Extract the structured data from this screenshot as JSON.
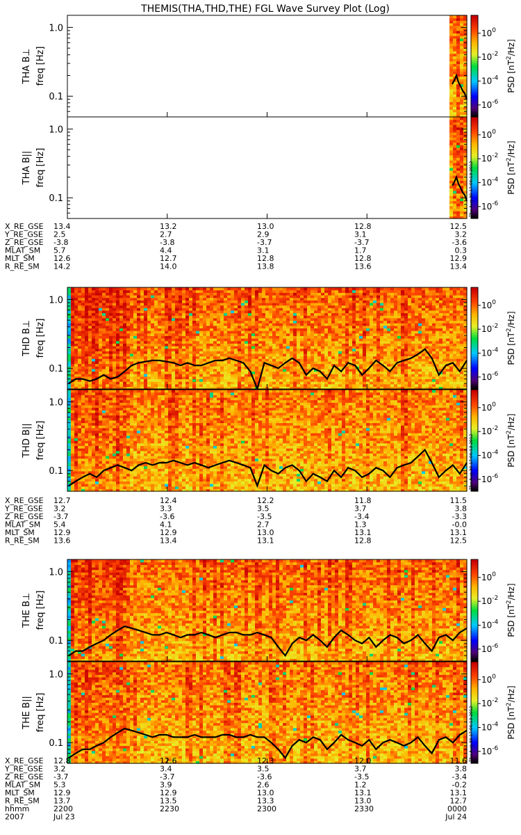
{
  "chart_data": {
    "type": "heatmap",
    "title": "THEMIS(THA,THD,THE) FGL Wave Survey Plot (Log)",
    "timestamp": "Thu Aug 30 17:06:13 2012",
    "colorbar": {
      "label_prefix": "PSD [nT",
      "label_exp": "2",
      "label_suffix": "/Hz]",
      "ticks": [
        {
          "base": "10",
          "exp": "0"
        },
        {
          "base": "10",
          "exp": "-2"
        },
        {
          "base": "10",
          "exp": "-4"
        },
        {
          "base": "10",
          "exp": "-6"
        }
      ],
      "tick_values": [
        0,
        -2,
        -4,
        -6
      ],
      "range_log": [
        -7,
        1.5
      ]
    },
    "yaxis": {
      "label": "freq [Hz]",
      "range": [
        0.05,
        1.5
      ],
      "scale": "log",
      "ticks": [
        {
          "value": 1.0,
          "label": "1.0"
        },
        {
          "value": 0.1,
          "label": "0.1"
        }
      ]
    },
    "panels": [
      {
        "probe": "THA",
        "component": "B⊥",
        "data_start_frac": 0.96,
        "intensity": 0.9,
        "seed": 11,
        "line": [
          0.15,
          0.17,
          0.2,
          0.16,
          0.14,
          0.12,
          0.11,
          0.09
        ]
      },
      {
        "probe": "THA",
        "component": "B||",
        "data_start_frac": 0.96,
        "intensity": 0.9,
        "seed": 13,
        "line": [
          0.15,
          0.17,
          0.2,
          0.16,
          0.14,
          0.12,
          0.11,
          0.09
        ],
        "show_timestamp": true
      },
      {
        "probe": "THD",
        "component": "B⊥",
        "data_start_frac": 0.0,
        "intensity": 1.0,
        "seed": 21,
        "line": [
          0.06,
          0.07,
          0.07,
          0.065,
          0.07,
          0.08,
          0.07,
          0.075,
          0.09,
          0.11,
          0.12,
          0.125,
          0.13,
          0.13,
          0.125,
          0.12,
          0.11,
          0.12,
          0.11,
          0.11,
          0.12,
          0.13,
          0.13,
          0.14,
          0.13,
          0.12,
          0.09,
          0.05,
          0.12,
          0.11,
          0.1,
          0.12,
          0.14,
          0.12,
          0.08,
          0.1,
          0.09,
          0.07,
          0.11,
          0.09,
          0.12,
          0.11,
          0.08,
          0.1,
          0.13,
          0.11,
          0.09,
          0.12,
          0.13,
          0.14,
          0.16,
          0.19,
          0.14,
          0.08,
          0.11,
          0.12,
          0.09,
          0.13
        ]
      },
      {
        "probe": "THD",
        "component": "B||",
        "data_start_frac": 0.0,
        "intensity": 0.85,
        "seed": 23,
        "line": [
          0.06,
          0.07,
          0.08,
          0.09,
          0.08,
          0.1,
          0.11,
          0.12,
          0.11,
          0.1,
          0.12,
          0.13,
          0.12,
          0.13,
          0.13,
          0.14,
          0.13,
          0.12,
          0.13,
          0.12,
          0.11,
          0.12,
          0.13,
          0.14,
          0.13,
          0.12,
          0.11,
          0.06,
          0.12,
          0.1,
          0.09,
          0.11,
          0.12,
          0.1,
          0.07,
          0.09,
          0.08,
          0.07,
          0.1,
          0.08,
          0.11,
          0.1,
          0.08,
          0.09,
          0.11,
          0.1,
          0.08,
          0.11,
          0.12,
          0.13,
          0.16,
          0.2,
          0.13,
          0.08,
          0.1,
          0.12,
          0.09,
          0.13
        ],
        "show_timestamp": true
      },
      {
        "probe": "THE",
        "component": "B⊥",
        "data_start_frac": 0.0,
        "intensity": 0.95,
        "seed": 31,
        "line": [
          0.06,
          0.07,
          0.07,
          0.08,
          0.09,
          0.1,
          0.12,
          0.14,
          0.16,
          0.15,
          0.14,
          0.13,
          0.12,
          0.12,
          0.13,
          0.12,
          0.11,
          0.12,
          0.12,
          0.13,
          0.12,
          0.11,
          0.12,
          0.13,
          0.13,
          0.12,
          0.12,
          0.13,
          0.12,
          0.11,
          0.08,
          0.06,
          0.09,
          0.11,
          0.1,
          0.12,
          0.1,
          0.08,
          0.11,
          0.14,
          0.12,
          0.1,
          0.09,
          0.11,
          0.08,
          0.1,
          0.12,
          0.11,
          0.09,
          0.1,
          0.12,
          0.09,
          0.07,
          0.11,
          0.12,
          0.1,
          0.13,
          0.15
        ]
      },
      {
        "probe": "THE",
        "component": "B||",
        "data_start_frac": 0.0,
        "intensity": 0.85,
        "seed": 37,
        "line": [
          0.06,
          0.07,
          0.08,
          0.08,
          0.09,
          0.1,
          0.12,
          0.14,
          0.16,
          0.15,
          0.14,
          0.13,
          0.12,
          0.13,
          0.13,
          0.12,
          0.12,
          0.12,
          0.13,
          0.12,
          0.12,
          0.12,
          0.13,
          0.13,
          0.12,
          0.12,
          0.13,
          0.12,
          0.12,
          0.1,
          0.08,
          0.06,
          0.09,
          0.11,
          0.1,
          0.12,
          0.11,
          0.08,
          0.1,
          0.13,
          0.11,
          0.1,
          0.09,
          0.11,
          0.08,
          0.1,
          0.11,
          0.1,
          0.09,
          0.1,
          0.12,
          0.09,
          0.07,
          0.11,
          0.12,
          0.1,
          0.13,
          0.15
        ],
        "show_timestamp": true
      }
    ],
    "ephemeris": [
      {
        "probe": "THA",
        "rows": [
          {
            "name": "X_RE_GSE",
            "values": [
              "13.4",
              "13.2",
              "13.0",
              "12.8",
              "12.5"
            ]
          },
          {
            "name": "Y_RE_GSE",
            "values": [
              "2.5",
              "2.7",
              "2.9",
              "3.1",
              "3.2"
            ]
          },
          {
            "name": "Z_RE_GSE",
            "values": [
              "-3.8",
              "-3.8",
              "-3.7",
              "-3.7",
              "-3.6"
            ]
          },
          {
            "name": "MLAT_SM",
            "values": [
              "5.7",
              "4.4",
              "3.1",
              "1.7",
              "0.3"
            ]
          },
          {
            "name": "MLT_SM",
            "values": [
              "12.6",
              "12.7",
              "12.8",
              "12.8",
              "12.9"
            ]
          },
          {
            "name": "R_RE_SM",
            "values": [
              "14.2",
              "14.0",
              "13.8",
              "13.6",
              "13.4"
            ]
          }
        ]
      },
      {
        "probe": "THD",
        "rows": [
          {
            "name": "X_RE_GSE",
            "values": [
              "12.7",
              "12.4",
              "12.2",
              "11.8",
              "11.5"
            ]
          },
          {
            "name": "Y_RE_GSE",
            "values": [
              "3.2",
              "3.3",
              "3.5",
              "3.7",
              "3.8"
            ]
          },
          {
            "name": "Z_RE_GSE",
            "values": [
              "-3.7",
              "-3.6",
              "-3.5",
              "-3.4",
              "-3.3"
            ]
          },
          {
            "name": "MLAT_SM",
            "values": [
              "5.4",
              "4.1",
              "2.7",
              "1.3",
              "-0.0"
            ]
          },
          {
            "name": "MLT_SM",
            "values": [
              "12.9",
              "12.9",
              "13.0",
              "13.1",
              "13.1"
            ]
          },
          {
            "name": "R_RE_SM",
            "values": [
              "13.6",
              "13.4",
              "13.1",
              "12.8",
              "12.5"
            ]
          }
        ]
      },
      {
        "probe": "THE",
        "rows": [
          {
            "name": "X_RE_GSE",
            "values": [
              "12.8",
              "12.6",
              "12.3",
              "12.0",
              "11.6"
            ]
          },
          {
            "name": "Y_RE_GSE",
            "values": [
              "3.2",
              "3.4",
              "3.5",
              "3.7",
              "3.8"
            ]
          },
          {
            "name": "Z_RE_GSE",
            "values": [
              "-3.7",
              "-3.7",
              "-3.6",
              "-3.5",
              "-3.4"
            ]
          },
          {
            "name": "MLAT_SM",
            "values": [
              "5.3",
              "3.9",
              "2.6",
              "1.2",
              "-0.2"
            ]
          },
          {
            "name": "MLT_SM",
            "values": [
              "12.9",
              "12.9",
              "13.0",
              "13.1",
              "13.1"
            ]
          },
          {
            "name": "R_RE_SM",
            "values": [
              "13.7",
              "13.5",
              "13.3",
              "13.0",
              "12.7"
            ]
          },
          {
            "name": "hhmm",
            "values": [
              "2200",
              "2230",
              "2300",
              "2330",
              "0000"
            ]
          },
          {
            "name": "2007",
            "values": [
              "Jul 23",
              "",
              "",
              "",
              "Jul 24"
            ]
          }
        ]
      }
    ],
    "xaxis": {
      "range_hours": [
        22.0,
        24.0
      ],
      "tick_hours": [
        22.0,
        22.5,
        23.0,
        23.5,
        24.0
      ]
    }
  }
}
